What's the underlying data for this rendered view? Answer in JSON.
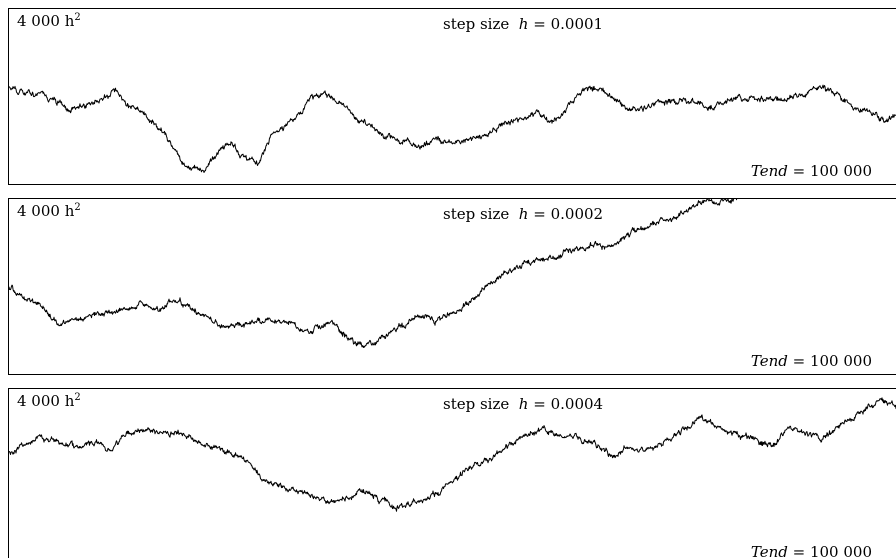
{
  "chart_data": [
    {
      "type": "line",
      "ylabel": "4 000 h",
      "ylabel_exp": "2",
      "title_prefix": "step size",
      "title_var": "h",
      "title_eq": "= 0.0001",
      "annotation_var": "Tend",
      "annotation_eq": "= 100 000",
      "xlim": [
        0,
        100000
      ],
      "ylim": [
        0,
        1
      ],
      "series": [
        {
          "x": [
            0,
            4000,
            7000,
            10000,
            12000,
            13500,
            15000,
            17000,
            18500,
            20000,
            22000,
            24000,
            25000,
            26500,
            28000,
            29500,
            31000,
            33000,
            34000,
            35500,
            37000,
            39000,
            41000,
            42000,
            44000,
            46000,
            48000,
            50000,
            52000,
            54000,
            56000,
            58000,
            59500,
            61000,
            62500,
            64000,
            66000,
            68000,
            69500,
            71000,
            73000,
            75000,
            77000,
            79000,
            81000,
            83000,
            85000,
            87000,
            89000,
            91000,
            93000,
            95000,
            97000,
            98500,
            100000
          ],
          "values": [
            0.55,
            0.52,
            0.43,
            0.48,
            0.53,
            0.45,
            0.42,
            0.32,
            0.22,
            0.1,
            0.09,
            0.22,
            0.24,
            0.16,
            0.12,
            0.28,
            0.33,
            0.42,
            0.5,
            0.52,
            0.48,
            0.38,
            0.33,
            0.29,
            0.26,
            0.23,
            0.26,
            0.24,
            0.27,
            0.29,
            0.36,
            0.38,
            0.42,
            0.36,
            0.4,
            0.53,
            0.56,
            0.5,
            0.44,
            0.42,
            0.48,
            0.47,
            0.48,
            0.45,
            0.47,
            0.5,
            0.49,
            0.48,
            0.51,
            0.56,
            0.52,
            0.45,
            0.42,
            0.37,
            0.4
          ]
        }
      ]
    },
    {
      "type": "line",
      "ylabel": "4 000 h",
      "ylabel_exp": "2",
      "title_prefix": "step size",
      "title_var": "h",
      "title_eq": "= 0.0002",
      "annotation_var": "Tend",
      "annotation_eq": "= 100 000",
      "xlim": [
        0,
        100000
      ],
      "ylim": [
        0,
        1
      ],
      "series": [
        {
          "x": [
            0,
            2000,
            4000,
            5500,
            7000,
            10000,
            13000,
            15000,
            17000,
            19000,
            21000,
            22500,
            24000,
            27000,
            30000,
            32000,
            34000,
            35500,
            37000,
            38500,
            40000,
            42000,
            44000,
            46000,
            48000,
            50000,
            52000,
            54000,
            56000,
            58000,
            60000,
            62000,
            64000,
            66000,
            68000,
            70000,
            72000,
            74000,
            75000,
            76500,
            78000,
            80000,
            82000,
            83500
          ],
          "values": [
            0.5,
            0.43,
            0.38,
            0.29,
            0.31,
            0.35,
            0.38,
            0.4,
            0.38,
            0.43,
            0.38,
            0.31,
            0.28,
            0.3,
            0.33,
            0.29,
            0.25,
            0.31,
            0.27,
            0.2,
            0.16,
            0.22,
            0.27,
            0.34,
            0.31,
            0.36,
            0.42,
            0.52,
            0.58,
            0.63,
            0.66,
            0.68,
            0.72,
            0.75,
            0.72,
            0.8,
            0.85,
            0.88,
            0.9,
            0.94,
            1.0,
            0.98,
            1.0,
            1.03
          ]
        }
      ]
    },
    {
      "type": "line",
      "ylabel": "4 000 h",
      "ylabel_exp": "2",
      "title_prefix": "step size",
      "title_var": "h",
      "title_eq": "= 0.0004",
      "annotation_var": "Tend",
      "annotation_eq": "= 100 000",
      "xlim": [
        0,
        100000
      ],
      "ylim": [
        0,
        1
      ],
      "series": [
        {
          "x": [
            0,
            2000,
            4000,
            6000,
            8000,
            10000,
            11500,
            13000,
            15000,
            17000,
            19000,
            21000,
            23000,
            25000,
            27000,
            28500,
            30000,
            32000,
            34000,
            36000,
            38000,
            40000,
            42000,
            44000,
            46000,
            48000,
            50000,
            52000,
            54000,
            56000,
            58000,
            60000,
            62000,
            64000,
            66000,
            68000,
            70000,
            72000,
            74000,
            76000,
            78000,
            80000,
            82000,
            84000,
            86000,
            88000,
            90000,
            92000,
            94000,
            96000,
            98000,
            100000
          ],
          "values": [
            0.62,
            0.67,
            0.71,
            0.68,
            0.65,
            0.69,
            0.63,
            0.73,
            0.76,
            0.74,
            0.75,
            0.69,
            0.65,
            0.63,
            0.57,
            0.47,
            0.44,
            0.41,
            0.37,
            0.34,
            0.36,
            0.4,
            0.34,
            0.3,
            0.34,
            0.38,
            0.45,
            0.55,
            0.59,
            0.66,
            0.73,
            0.76,
            0.73,
            0.72,
            0.68,
            0.6,
            0.67,
            0.63,
            0.7,
            0.76,
            0.83,
            0.77,
            0.73,
            0.7,
            0.66,
            0.78,
            0.73,
            0.72,
            0.8,
            0.86,
            0.93,
            0.9
          ]
        }
      ]
    }
  ]
}
